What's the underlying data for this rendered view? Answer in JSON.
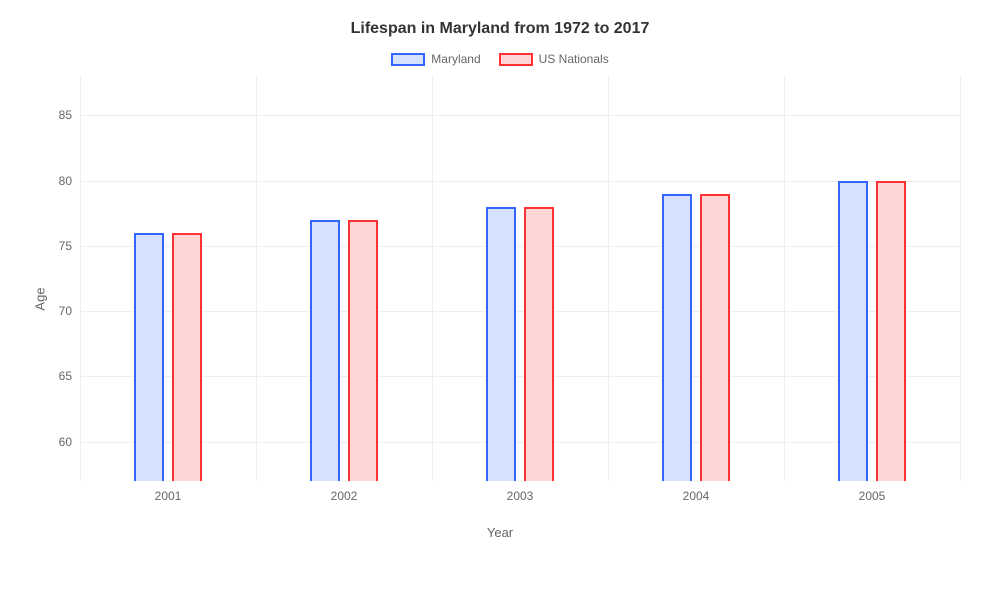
{
  "chart": {
    "type": "bar",
    "title": "Lifespan in Maryland from 1972 to 2017",
    "title_fontsize": 16,
    "title_color": "#333333",
    "background_color": "#ffffff",
    "grid_color": "#eeeeee",
    "tick_label_color": "#666666",
    "tick_fontsize": 12,
    "axis_title_fontsize": 13,
    "x_axis": {
      "title": "Year",
      "categories": [
        "2001",
        "2002",
        "2003",
        "2004",
        "2005"
      ]
    },
    "y_axis": {
      "title": "Age",
      "visible_min": 57,
      "visible_max": 88,
      "ticks": [
        60,
        65,
        70,
        75,
        80,
        85
      ]
    },
    "series": [
      {
        "name": "Maryland",
        "border_color": "#3366ff",
        "fill_color": "#d6e0ff",
        "values": [
          76,
          77,
          78,
          79,
          80
        ]
      },
      {
        "name": "US Nationals",
        "border_color": "#ff3333",
        "fill_color": "#ffd6d6",
        "values": [
          76,
          77,
          78,
          79,
          80
        ]
      }
    ],
    "bar_width_pct": 3.4,
    "bar_gap_pct": 0.9,
    "group_vgrid": true,
    "legend_swatch_border_width": 2
  }
}
